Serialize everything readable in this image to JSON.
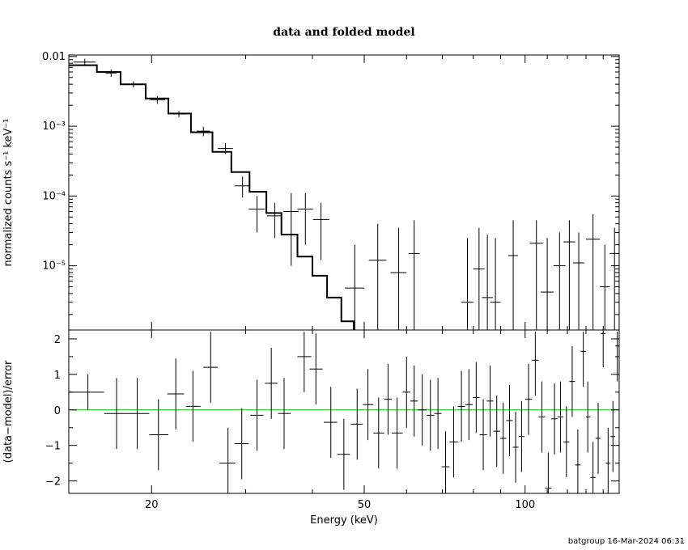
{
  "colors": {
    "data": "#000000",
    "model": "#000000",
    "zero_line": "#00cc00",
    "frame": "#000000"
  },
  "footer": "batgroup 16-Mar-2024 06:31",
  "chart_data": [
    {
      "type": "scatter",
      "title": "data and folded model",
      "ylabel": "normalized counts s⁻¹ keV⁻¹",
      "yscale": "log",
      "xscale": "log",
      "xlim": [
        14,
        150
      ],
      "ylim": [
        1.2e-06,
        0.0105
      ],
      "y_tick_labels": [
        "0.01",
        "10⁻³",
        "10⁻⁴",
        "10⁻⁵"
      ],
      "y_ticks": [
        0.01,
        0.001,
        0.0001,
        1e-05
      ],
      "data": [
        {
          "x": 15.0,
          "xlo": 14.3,
          "xhi": 15.7,
          "y": 0.0083,
          "ylo": 0.0073,
          "yhi": 0.0093
        },
        {
          "x": 16.8,
          "xlo": 16.4,
          "xhi": 17.2,
          "y": 0.0058,
          "ylo": 0.0051,
          "yhi": 0.0065
        },
        {
          "x": 18.5,
          "xlo": 18.0,
          "xhi": 19.0,
          "y": 0.004,
          "ylo": 0.0036,
          "yhi": 0.0044
        },
        {
          "x": 20.5,
          "xlo": 19.9,
          "xhi": 21.2,
          "y": 0.0024,
          "ylo": 0.0021,
          "yhi": 0.0027
        },
        {
          "x": 22.5,
          "xlo": 21.9,
          "xhi": 23.2,
          "y": 0.0015,
          "ylo": 0.00135,
          "yhi": 0.00165
        },
        {
          "x": 25.0,
          "xlo": 24.3,
          "xhi": 25.7,
          "y": 0.00085,
          "ylo": 0.00072,
          "yhi": 0.00098
        },
        {
          "x": 27.5,
          "xlo": 26.6,
          "xhi": 28.4,
          "y": 0.00048,
          "ylo": 0.0004,
          "yhi": 0.00057
        },
        {
          "x": 29.6,
          "xlo": 28.6,
          "xhi": 30.6,
          "y": 0.00014,
          "ylo": 9.5e-05,
          "yhi": 0.00019
        },
        {
          "x": 31.5,
          "xlo": 30.4,
          "xhi": 32.6,
          "y": 6.5e-05,
          "ylo": 3e-05,
          "yhi": 0.0001
        },
        {
          "x": 34.0,
          "xlo": 32.9,
          "xhi": 35.1,
          "y": 5.2e-05,
          "ylo": 2.5e-05,
          "yhi": 8e-05
        },
        {
          "x": 36.5,
          "xlo": 35.3,
          "xhi": 37.7,
          "y": 6e-05,
          "ylo": 1e-05,
          "yhi": 0.00011
        },
        {
          "x": 38.8,
          "xlo": 37.5,
          "xhi": 40.1,
          "y": 6.5e-05,
          "ylo": 2e-05,
          "yhi": 0.00011
        },
        {
          "x": 41.5,
          "xlo": 40.1,
          "xhi": 43.0,
          "y": 4.6e-05,
          "ylo": 1.2e-05,
          "yhi": 8e-05
        },
        {
          "x": 48.0,
          "xlo": 46.0,
          "xhi": 50.0,
          "y": 4.8e-06,
          "ylo": null,
          "yhi": 2e-05
        },
        {
          "x": 53.0,
          "xlo": 51.0,
          "xhi": 55.0,
          "y": 1.2e-05,
          "ylo": null,
          "yhi": 4e-05
        },
        {
          "x": 58.0,
          "xlo": 56.0,
          "xhi": 60.0,
          "y": 8e-06,
          "ylo": null,
          "yhi": 3.5e-05
        },
        {
          "x": 62.0,
          "xlo": 60.5,
          "xhi": 63.5,
          "y": 1.5e-05,
          "ylo": null,
          "yhi": 4.5e-05
        },
        {
          "x": 78.0,
          "xlo": 76.0,
          "xhi": 80.0,
          "y": 3e-06,
          "ylo": null,
          "yhi": 2.5e-05
        },
        {
          "x": 82.0,
          "xlo": 80.0,
          "xhi": 84.0,
          "y": 9e-06,
          "ylo": null,
          "yhi": 3.5e-05
        },
        {
          "x": 85.0,
          "xlo": 83.0,
          "xhi": 87.0,
          "y": 3.5e-06,
          "ylo": null,
          "yhi": 2.8e-05
        },
        {
          "x": 88.0,
          "xlo": 86.0,
          "xhi": 90.0,
          "y": 3e-06,
          "ylo": null,
          "yhi": 2.5e-05
        },
        {
          "x": 95.0,
          "xlo": 93.0,
          "xhi": 97.0,
          "y": 1.4e-05,
          "ylo": null,
          "yhi": 4.5e-05
        },
        {
          "x": 105.0,
          "xlo": 102.0,
          "xhi": 108.0,
          "y": 2.1e-05,
          "ylo": null,
          "yhi": 4.5e-05
        },
        {
          "x": 110.0,
          "xlo": 107.0,
          "xhi": 113.0,
          "y": 4.2e-06,
          "ylo": null,
          "yhi": 2.5e-05
        },
        {
          "x": 116.0,
          "xlo": 113.0,
          "xhi": 119.0,
          "y": 1e-05,
          "ylo": null,
          "yhi": 3e-05
        },
        {
          "x": 121.0,
          "xlo": 118.0,
          "xhi": 124.0,
          "y": 2.2e-05,
          "ylo": null,
          "yhi": 4.5e-05
        },
        {
          "x": 126.0,
          "xlo": 123.0,
          "xhi": 129.0,
          "y": 1.1e-05,
          "ylo": null,
          "yhi": 3e-05
        },
        {
          "x": 134.0,
          "xlo": 130.0,
          "xhi": 138.0,
          "y": 2.4e-05,
          "ylo": null,
          "yhi": 5.5e-05
        },
        {
          "x": 141.0,
          "xlo": 138.0,
          "xhi": 144.0,
          "y": 5e-06,
          "ylo": null,
          "yhi": 2e-05
        },
        {
          "x": 147.0,
          "xlo": 144.0,
          "xhi": 150.0,
          "y": 1.5e-05,
          "ylo": null,
          "yhi": 3.5e-05
        }
      ],
      "model_steps": [
        {
          "x0": 14.0,
          "x1": 15.8,
          "y": 0.0075
        },
        {
          "x0": 15.8,
          "x1": 17.5,
          "y": 0.006
        },
        {
          "x0": 17.5,
          "x1": 19.5,
          "y": 0.004
        },
        {
          "x0": 19.5,
          "x1": 21.5,
          "y": 0.0025
        },
        {
          "x0": 21.5,
          "x1": 23.7,
          "y": 0.00152
        },
        {
          "x0": 23.7,
          "x1": 26.0,
          "y": 0.00082
        },
        {
          "x0": 26.0,
          "x1": 28.2,
          "y": 0.00043
        },
        {
          "x0": 28.2,
          "x1": 30.5,
          "y": 0.00022
        },
        {
          "x0": 30.5,
          "x1": 32.8,
          "y": 0.000115
        },
        {
          "x0": 32.8,
          "x1": 35.0,
          "y": 5.7e-05
        },
        {
          "x0": 35.0,
          "x1": 37.5,
          "y": 2.8e-05
        },
        {
          "x0": 37.5,
          "x1": 40.0,
          "y": 1.35e-05
        },
        {
          "x0": 40.0,
          "x1": 42.6,
          "y": 7.2e-06
        },
        {
          "x0": 42.6,
          "x1": 45.3,
          "y": 3.5e-06
        },
        {
          "x0": 45.3,
          "x1": 47.8,
          "y": 1.6e-06
        }
      ]
    },
    {
      "type": "scatter",
      "ylabel": "(data−model)/error",
      "xlabel": "Energy (keV)",
      "xscale": "log",
      "xlim": [
        14,
        150
      ],
      "ylim": [
        -2.35,
        2.25
      ],
      "y_ticks": [
        -2,
        -1,
        0,
        1,
        2
      ],
      "y_tick_labels": [
        "−2",
        "−1",
        "0",
        "1",
        "2"
      ],
      "x_ticks": [
        20,
        50,
        100
      ],
      "x_tick_labels": [
        "20",
        "50",
        "100"
      ],
      "zero_line": 0,
      "data": [
        {
          "x": 15.2,
          "xlo": 14.0,
          "xhi": 16.3,
          "y": 0.5,
          "ylo": 0.0,
          "yhi": 1.0
        },
        {
          "x": 17.2,
          "xlo": 16.3,
          "xhi": 18.0,
          "y": -0.1,
          "ylo": -1.1,
          "yhi": 0.9
        },
        {
          "x": 18.8,
          "xlo": 18.0,
          "xhi": 19.8,
          "y": -0.1,
          "ylo": -1.1,
          "yhi": 0.9
        },
        {
          "x": 20.6,
          "xlo": 19.8,
          "xhi": 21.5,
          "y": -0.7,
          "ylo": -1.7,
          "yhi": 0.3
        },
        {
          "x": 22.2,
          "xlo": 21.4,
          "xhi": 23.0,
          "y": 0.45,
          "ylo": -0.55,
          "yhi": 1.45
        },
        {
          "x": 23.9,
          "xlo": 23.2,
          "xhi": 24.7,
          "y": 0.1,
          "ylo": -0.9,
          "yhi": 1.1
        },
        {
          "x": 25.8,
          "xlo": 25.0,
          "xhi": 26.6,
          "y": 1.2,
          "ylo": 0.2,
          "yhi": 2.2
        },
        {
          "x": 27.8,
          "xlo": 26.8,
          "xhi": 28.7,
          "y": -1.5,
          "ylo": -2.5,
          "yhi": -0.5
        },
        {
          "x": 29.5,
          "xlo": 28.6,
          "xhi": 30.4,
          "y": -0.95,
          "ylo": -1.95,
          "yhi": 0.05
        },
        {
          "x": 31.5,
          "xlo": 30.6,
          "xhi": 32.4,
          "y": -0.15,
          "ylo": -1.15,
          "yhi": 0.85
        },
        {
          "x": 33.5,
          "xlo": 32.6,
          "xhi": 34.4,
          "y": 0.75,
          "ylo": -0.25,
          "yhi": 1.75
        },
        {
          "x": 35.4,
          "xlo": 34.5,
          "xhi": 36.4,
          "y": -0.1,
          "ylo": -1.1,
          "yhi": 0.9
        },
        {
          "x": 38.6,
          "xlo": 37.5,
          "xhi": 39.8,
          "y": 1.5,
          "ylo": 0.5,
          "yhi": 2.2
        },
        {
          "x": 40.6,
          "xlo": 39.5,
          "xhi": 41.8,
          "y": 1.15,
          "ylo": 0.15,
          "yhi": 2.15
        },
        {
          "x": 43.3,
          "xlo": 42.0,
          "xhi": 44.5,
          "y": -0.35,
          "ylo": -1.35,
          "yhi": 0.65
        },
        {
          "x": 45.8,
          "xlo": 44.5,
          "xhi": 47.0,
          "y": -1.25,
          "ylo": -2.25,
          "yhi": -0.25
        },
        {
          "x": 48.5,
          "xlo": 47.2,
          "xhi": 49.7,
          "y": -0.4,
          "ylo": -1.4,
          "yhi": 0.6
        },
        {
          "x": 50.8,
          "xlo": 49.7,
          "xhi": 52.0,
          "y": 0.15,
          "ylo": -0.85,
          "yhi": 1.15
        },
        {
          "x": 53.2,
          "xlo": 52.0,
          "xhi": 54.5,
          "y": -0.65,
          "ylo": -1.65,
          "yhi": 0.35
        },
        {
          "x": 55.4,
          "xlo": 54.5,
          "xhi": 56.3,
          "y": 0.3,
          "ylo": -0.7,
          "yhi": 1.3
        },
        {
          "x": 57.6,
          "xlo": 56.3,
          "xhi": 59.0,
          "y": -0.65,
          "ylo": -1.65,
          "yhi": 0.35
        },
        {
          "x": 60.0,
          "xlo": 59.0,
          "xhi": 61.0,
          "y": 0.5,
          "ylo": -0.5,
          "yhi": 1.5
        },
        {
          "x": 62.0,
          "xlo": 61.0,
          "xhi": 63.0,
          "y": 0.25,
          "ylo": -0.75,
          "yhi": 1.25
        },
        {
          "x": 64.2,
          "xlo": 63.0,
          "xhi": 65.4,
          "y": 0.0,
          "ylo": -1.0,
          "yhi": 1.0
        },
        {
          "x": 66.5,
          "xlo": 65.4,
          "xhi": 67.6,
          "y": -0.15,
          "ylo": -1.15,
          "yhi": 0.85
        },
        {
          "x": 68.7,
          "xlo": 67.6,
          "xhi": 69.8,
          "y": -0.1,
          "ylo": -1.1,
          "yhi": 0.9
        },
        {
          "x": 71.0,
          "xlo": 69.8,
          "xhi": 72.2,
          "y": -1.6,
          "ylo": -2.6,
          "yhi": -0.6
        },
        {
          "x": 73.5,
          "xlo": 72.2,
          "xhi": 74.8,
          "y": -0.9,
          "ylo": -1.9,
          "yhi": 0.1
        },
        {
          "x": 76.0,
          "xlo": 74.8,
          "xhi": 77.2,
          "y": 0.1,
          "ylo": -0.9,
          "yhi": 1.1
        },
        {
          "x": 78.5,
          "xlo": 77.2,
          "xhi": 79.8,
          "y": 0.15,
          "ylo": -0.85,
          "yhi": 1.15
        },
        {
          "x": 81.0,
          "xlo": 79.8,
          "xhi": 82.2,
          "y": 0.35,
          "ylo": -0.65,
          "yhi": 1.35
        },
        {
          "x": 83.5,
          "xlo": 82.2,
          "xhi": 84.8,
          "y": -0.7,
          "ylo": -1.7,
          "yhi": 0.3
        },
        {
          "x": 86.0,
          "xlo": 84.8,
          "xhi": 87.2,
          "y": 0.25,
          "ylo": -0.75,
          "yhi": 1.25
        },
        {
          "x": 88.5,
          "xlo": 87.2,
          "xhi": 89.8,
          "y": -0.6,
          "ylo": -1.6,
          "yhi": 0.4
        },
        {
          "x": 91.0,
          "xlo": 89.8,
          "xhi": 92.2,
          "y": -0.8,
          "ylo": -1.8,
          "yhi": 0.2
        },
        {
          "x": 93.5,
          "xlo": 92.2,
          "xhi": 94.8,
          "y": -0.3,
          "ylo": -1.3,
          "yhi": 0.7
        },
        {
          "x": 96.0,
          "xlo": 94.8,
          "xhi": 97.2,
          "y": -1.05,
          "ylo": -2.05,
          "yhi": -0.05
        },
        {
          "x": 98.5,
          "xlo": 97.2,
          "xhi": 99.8,
          "y": -0.75,
          "ylo": -1.75,
          "yhi": 0.25
        },
        {
          "x": 101.5,
          "xlo": 100.0,
          "xhi": 103.0,
          "y": 0.3,
          "ylo": -0.7,
          "yhi": 1.3
        },
        {
          "x": 104.5,
          "xlo": 103.0,
          "xhi": 106.0,
          "y": 1.4,
          "ylo": 0.4,
          "yhi": 2.2
        },
        {
          "x": 107.5,
          "xlo": 106.0,
          "xhi": 109.0,
          "y": -0.2,
          "ylo": -1.2,
          "yhi": 0.8
        },
        {
          "x": 110.5,
          "xlo": 109.0,
          "xhi": 112.0,
          "y": -2.2,
          "ylo": -2.6,
          "yhi": -1.2
        },
        {
          "x": 113.5,
          "xlo": 112.0,
          "xhi": 115.0,
          "y": -0.25,
          "ylo": -1.25,
          "yhi": 0.75
        },
        {
          "x": 116.5,
          "xlo": 115.0,
          "xhi": 118.0,
          "y": -0.2,
          "ylo": -1.2,
          "yhi": 0.8
        },
        {
          "x": 119.5,
          "xlo": 118.0,
          "xhi": 121.0,
          "y": -0.9,
          "ylo": -1.9,
          "yhi": 0.1
        },
        {
          "x": 122.5,
          "xlo": 121.0,
          "xhi": 124.0,
          "y": 0.8,
          "ylo": -0.2,
          "yhi": 1.8
        },
        {
          "x": 125.5,
          "xlo": 124.0,
          "xhi": 127.0,
          "y": -1.55,
          "ylo": -2.55,
          "yhi": -0.55
        },
        {
          "x": 128.5,
          "xlo": 127.0,
          "xhi": 130.0,
          "y": 1.65,
          "ylo": 0.65,
          "yhi": 2.2
        },
        {
          "x": 131.0,
          "xlo": 130.0,
          "xhi": 132.5,
          "y": -0.2,
          "ylo": -1.2,
          "yhi": 0.8
        },
        {
          "x": 134.0,
          "xlo": 132.5,
          "xhi": 135.5,
          "y": -1.9,
          "ylo": -2.6,
          "yhi": -0.9
        },
        {
          "x": 137.0,
          "xlo": 135.5,
          "xhi": 138.5,
          "y": -0.8,
          "ylo": -1.8,
          "yhi": 0.2
        },
        {
          "x": 140.0,
          "xlo": 138.5,
          "xhi": 141.5,
          "y": 2.15,
          "ylo": 1.2,
          "yhi": 2.2
        },
        {
          "x": 143.0,
          "xlo": 141.5,
          "xhi": 144.5,
          "y": -1.5,
          "ylo": -2.5,
          "yhi": -0.5
        },
        {
          "x": 146.0,
          "xlo": 144.5,
          "xhi": 147.5,
          "y": -0.75,
          "ylo": -1.75,
          "yhi": 0.25
        },
        {
          "x": 148.8,
          "xlo": 147.5,
          "xhi": 150.0,
          "y": 1.8,
          "ylo": 0.8,
          "yhi": 2.2
        }
      ]
    }
  ]
}
